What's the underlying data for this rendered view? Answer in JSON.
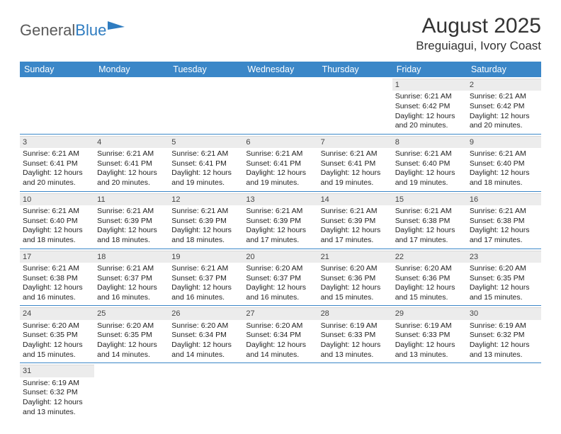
{
  "logo": {
    "text1": "General",
    "text2": "Blue"
  },
  "title": "August 2025",
  "location": "Breguiagui, Ivory Coast",
  "colors": {
    "header_bg": "#3b87c8",
    "header_text": "#ffffff",
    "daynum_bg": "#ececec",
    "row_divider": "#3b87c8",
    "logo_gray": "#5a5a5a",
    "logo_blue": "#2f7cc0"
  },
  "day_headers": [
    "Sunday",
    "Monday",
    "Tuesday",
    "Wednesday",
    "Thursday",
    "Friday",
    "Saturday"
  ],
  "weeks": [
    [
      null,
      null,
      null,
      null,
      null,
      {
        "n": "1",
        "sr": "Sunrise: 6:21 AM",
        "ss": "Sunset: 6:42 PM",
        "d1": "Daylight: 12 hours",
        "d2": "and 20 minutes."
      },
      {
        "n": "2",
        "sr": "Sunrise: 6:21 AM",
        "ss": "Sunset: 6:42 PM",
        "d1": "Daylight: 12 hours",
        "d2": "and 20 minutes."
      }
    ],
    [
      {
        "n": "3",
        "sr": "Sunrise: 6:21 AM",
        "ss": "Sunset: 6:41 PM",
        "d1": "Daylight: 12 hours",
        "d2": "and 20 minutes."
      },
      {
        "n": "4",
        "sr": "Sunrise: 6:21 AM",
        "ss": "Sunset: 6:41 PM",
        "d1": "Daylight: 12 hours",
        "d2": "and 20 minutes."
      },
      {
        "n": "5",
        "sr": "Sunrise: 6:21 AM",
        "ss": "Sunset: 6:41 PM",
        "d1": "Daylight: 12 hours",
        "d2": "and 19 minutes."
      },
      {
        "n": "6",
        "sr": "Sunrise: 6:21 AM",
        "ss": "Sunset: 6:41 PM",
        "d1": "Daylight: 12 hours",
        "d2": "and 19 minutes."
      },
      {
        "n": "7",
        "sr": "Sunrise: 6:21 AM",
        "ss": "Sunset: 6:41 PM",
        "d1": "Daylight: 12 hours",
        "d2": "and 19 minutes."
      },
      {
        "n": "8",
        "sr": "Sunrise: 6:21 AM",
        "ss": "Sunset: 6:40 PM",
        "d1": "Daylight: 12 hours",
        "d2": "and 19 minutes."
      },
      {
        "n": "9",
        "sr": "Sunrise: 6:21 AM",
        "ss": "Sunset: 6:40 PM",
        "d1": "Daylight: 12 hours",
        "d2": "and 18 minutes."
      }
    ],
    [
      {
        "n": "10",
        "sr": "Sunrise: 6:21 AM",
        "ss": "Sunset: 6:40 PM",
        "d1": "Daylight: 12 hours",
        "d2": "and 18 minutes."
      },
      {
        "n": "11",
        "sr": "Sunrise: 6:21 AM",
        "ss": "Sunset: 6:39 PM",
        "d1": "Daylight: 12 hours",
        "d2": "and 18 minutes."
      },
      {
        "n": "12",
        "sr": "Sunrise: 6:21 AM",
        "ss": "Sunset: 6:39 PM",
        "d1": "Daylight: 12 hours",
        "d2": "and 18 minutes."
      },
      {
        "n": "13",
        "sr": "Sunrise: 6:21 AM",
        "ss": "Sunset: 6:39 PM",
        "d1": "Daylight: 12 hours",
        "d2": "and 17 minutes."
      },
      {
        "n": "14",
        "sr": "Sunrise: 6:21 AM",
        "ss": "Sunset: 6:39 PM",
        "d1": "Daylight: 12 hours",
        "d2": "and 17 minutes."
      },
      {
        "n": "15",
        "sr": "Sunrise: 6:21 AM",
        "ss": "Sunset: 6:38 PM",
        "d1": "Daylight: 12 hours",
        "d2": "and 17 minutes."
      },
      {
        "n": "16",
        "sr": "Sunrise: 6:21 AM",
        "ss": "Sunset: 6:38 PM",
        "d1": "Daylight: 12 hours",
        "d2": "and 17 minutes."
      }
    ],
    [
      {
        "n": "17",
        "sr": "Sunrise: 6:21 AM",
        "ss": "Sunset: 6:38 PM",
        "d1": "Daylight: 12 hours",
        "d2": "and 16 minutes."
      },
      {
        "n": "18",
        "sr": "Sunrise: 6:21 AM",
        "ss": "Sunset: 6:37 PM",
        "d1": "Daylight: 12 hours",
        "d2": "and 16 minutes."
      },
      {
        "n": "19",
        "sr": "Sunrise: 6:21 AM",
        "ss": "Sunset: 6:37 PM",
        "d1": "Daylight: 12 hours",
        "d2": "and 16 minutes."
      },
      {
        "n": "20",
        "sr": "Sunrise: 6:20 AM",
        "ss": "Sunset: 6:37 PM",
        "d1": "Daylight: 12 hours",
        "d2": "and 16 minutes."
      },
      {
        "n": "21",
        "sr": "Sunrise: 6:20 AM",
        "ss": "Sunset: 6:36 PM",
        "d1": "Daylight: 12 hours",
        "d2": "and 15 minutes."
      },
      {
        "n": "22",
        "sr": "Sunrise: 6:20 AM",
        "ss": "Sunset: 6:36 PM",
        "d1": "Daylight: 12 hours",
        "d2": "and 15 minutes."
      },
      {
        "n": "23",
        "sr": "Sunrise: 6:20 AM",
        "ss": "Sunset: 6:35 PM",
        "d1": "Daylight: 12 hours",
        "d2": "and 15 minutes."
      }
    ],
    [
      {
        "n": "24",
        "sr": "Sunrise: 6:20 AM",
        "ss": "Sunset: 6:35 PM",
        "d1": "Daylight: 12 hours",
        "d2": "and 15 minutes."
      },
      {
        "n": "25",
        "sr": "Sunrise: 6:20 AM",
        "ss": "Sunset: 6:35 PM",
        "d1": "Daylight: 12 hours",
        "d2": "and 14 minutes."
      },
      {
        "n": "26",
        "sr": "Sunrise: 6:20 AM",
        "ss": "Sunset: 6:34 PM",
        "d1": "Daylight: 12 hours",
        "d2": "and 14 minutes."
      },
      {
        "n": "27",
        "sr": "Sunrise: 6:20 AM",
        "ss": "Sunset: 6:34 PM",
        "d1": "Daylight: 12 hours",
        "d2": "and 14 minutes."
      },
      {
        "n": "28",
        "sr": "Sunrise: 6:19 AM",
        "ss": "Sunset: 6:33 PM",
        "d1": "Daylight: 12 hours",
        "d2": "and 13 minutes."
      },
      {
        "n": "29",
        "sr": "Sunrise: 6:19 AM",
        "ss": "Sunset: 6:33 PM",
        "d1": "Daylight: 12 hours",
        "d2": "and 13 minutes."
      },
      {
        "n": "30",
        "sr": "Sunrise: 6:19 AM",
        "ss": "Sunset: 6:32 PM",
        "d1": "Daylight: 12 hours",
        "d2": "and 13 minutes."
      }
    ],
    [
      {
        "n": "31",
        "sr": "Sunrise: 6:19 AM",
        "ss": "Sunset: 6:32 PM",
        "d1": "Daylight: 12 hours",
        "d2": "and 13 minutes."
      },
      null,
      null,
      null,
      null,
      null,
      null
    ]
  ]
}
